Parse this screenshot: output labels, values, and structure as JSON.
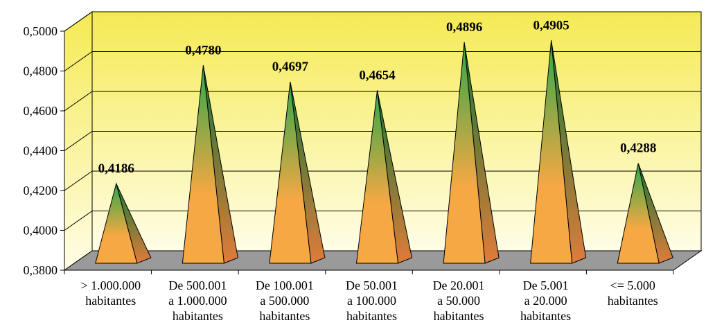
{
  "chart_data": {
    "type": "bar",
    "title": "",
    "xlabel": "",
    "ylabel": "",
    "categories": [
      [
        "> 1.000.000",
        "habitantes"
      ],
      [
        "De 500.001",
        "a 1.000.000",
        "habitantes"
      ],
      [
        "De 100.001",
        "a 500.000",
        "habitantes"
      ],
      [
        "De 50.001",
        "a 100.000",
        "habitantes"
      ],
      [
        "De 20.001",
        "a 50.000",
        "habitantes"
      ],
      [
        "De 5.001",
        "a 20.000",
        "habitantes"
      ],
      [
        "<= 5.000",
        "habitantes"
      ]
    ],
    "values": [
      0.4186,
      0.478,
      0.4697,
      0.4654,
      0.4896,
      0.4905,
      0.4288
    ],
    "value_labels": [
      "0,4186",
      "0,4780",
      "0,4697",
      "0,4654",
      "0,4896",
      "0,4905",
      "0,4288"
    ],
    "ylim": [
      0.38,
      0.5
    ],
    "yticks": [
      0.38,
      0.4,
      0.42,
      0.44,
      0.46,
      0.48,
      0.5
    ],
    "ytick_labels": [
      "0,3800",
      "0,4000",
      "0,4200",
      "0,4400",
      "0,4600",
      "0,4800",
      "0,5000"
    ],
    "grid": true,
    "bar_shape": "pyramid-3d",
    "colors": {
      "wall_top": "#f5ea54",
      "wall_bottom": "#fffde6",
      "floor": "#9a9a9a",
      "pyramid_top": "#2fa84a",
      "pyramid_bottom": "#f5a843",
      "pyramid_side_top": "#147a34",
      "pyramid_side_bottom": "#e07b3a"
    }
  }
}
